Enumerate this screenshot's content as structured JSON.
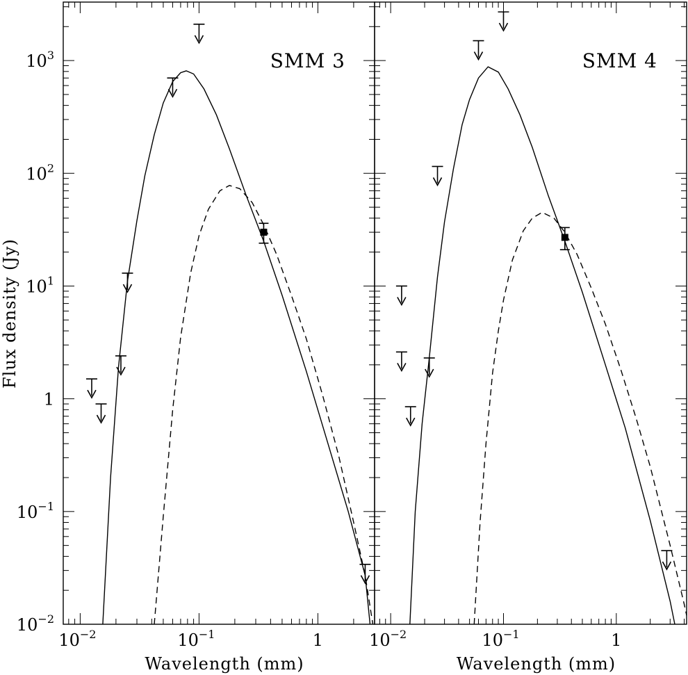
{
  "chart_data": {
    "type": "line",
    "y_axis": {
      "label": "Flux density (Jy)",
      "scale": "log",
      "range": [
        0.01,
        3300
      ],
      "ticks": [
        {
          "value": 0.01,
          "base": "10",
          "exp": "−2"
        },
        {
          "value": 0.1,
          "base": "10",
          "exp": "−1"
        },
        {
          "value": 1,
          "base": "1",
          "exp": ""
        },
        {
          "value": 10,
          "base": "10",
          "exp": "1"
        },
        {
          "value": 100,
          "base": "10",
          "exp": "2"
        },
        {
          "value": 1000,
          "base": "10",
          "exp": "3"
        }
      ]
    },
    "panels": [
      {
        "label": "SMM 3",
        "xlabel": "Wavelength (mm)",
        "x_scale": "log",
        "xlim": [
          0.0072,
          3.0
        ],
        "x_ticks": [
          {
            "value": 0.01,
            "base": "10",
            "exp": "−2"
          },
          {
            "value": 0.1,
            "base": "10",
            "exp": "−1"
          },
          {
            "value": 1,
            "base": "1",
            "exp": ""
          }
        ],
        "curves": [
          {
            "style": "solid",
            "x": [
              0.0155,
              0.018,
              0.021,
              0.025,
              0.03,
              0.035,
              0.042,
              0.05,
              0.06,
              0.07,
              0.078,
              0.09,
              0.11,
              0.14,
              0.18,
              0.25,
              0.35,
              0.5,
              0.8,
              1.2,
              1.8,
              2.5,
              2.75
            ],
            "y": [
              0.01,
              0.2,
              1.9,
              11,
              38,
              95,
              220,
              420,
              650,
              780,
              810,
              760,
              560,
              330,
              165,
              63,
              25,
              8.3,
              1.75,
              0.42,
              0.1,
              0.027,
              0.01
            ]
          },
          {
            "style": "dashed",
            "x": [
              0.042,
              0.05,
              0.06,
              0.07,
              0.085,
              0.1,
              0.12,
              0.15,
              0.18,
              0.22,
              0.28,
              0.35,
              0.45,
              0.6,
              0.8,
              1.1,
              1.5,
              2.0,
              2.5,
              2.9
            ],
            "y": [
              0.01,
              0.09,
              0.8,
              3.5,
              13,
              28,
              48,
              70,
              78,
              73,
              55,
              35,
              19,
              8.2,
              3.4,
              1.06,
              0.31,
              0.08,
              0.027,
              0.01
            ]
          }
        ],
        "detections": [
          {
            "x": 0.35,
            "y": 30,
            "y_low": 24,
            "y_high": 36
          }
        ],
        "upper_limits": [
          {
            "x": 0.0125,
            "y": 1.5
          },
          {
            "x": 0.015,
            "y": 0.9
          },
          {
            "x": 0.022,
            "y": 2.4
          },
          {
            "x": 0.025,
            "y": 13
          },
          {
            "x": 0.06,
            "y": 700
          },
          {
            "x": 0.1,
            "y": 2100
          },
          {
            "x": 2.5,
            "y": 0.034
          }
        ]
      },
      {
        "label": "SMM 4",
        "xlabel": "Wavelength (mm)",
        "x_scale": "log",
        "xlim": [
          0.0072,
          4.2
        ],
        "x_ticks": [
          {
            "value": 0.01,
            "base": "10",
            "exp": "−2"
          },
          {
            "value": 0.1,
            "base": "10",
            "exp": "−1"
          },
          {
            "value": 1,
            "base": "1",
            "exp": ""
          }
        ],
        "curves": [
          {
            "style": "solid",
            "x": [
              0.0148,
              0.0165,
              0.019,
              0.022,
              0.026,
              0.03,
              0.036,
              0.043,
              0.05,
              0.06,
              0.073,
              0.09,
              0.11,
              0.14,
              0.18,
              0.25,
              0.35,
              0.5,
              0.8,
              1.2,
              2.0,
              3.0,
              3.3
            ],
            "y": [
              0.01,
              0.1,
              0.6,
              2.3,
              12,
              37,
              110,
              270,
              450,
              700,
              880,
              790,
              560,
              330,
              170,
              63,
              25,
              8.8,
              2.0,
              0.55,
              0.083,
              0.016,
              0.01
            ]
          },
          {
            "style": "dashed",
            "x": [
              0.055,
              0.062,
              0.07,
              0.08,
              0.09,
              0.1,
              0.12,
              0.15,
              0.18,
              0.22,
              0.28,
              0.35,
              0.45,
              0.6,
              0.8,
              1.1,
              1.5,
              2.0,
              3.0,
              4.0,
              4.2
            ],
            "y": [
              0.01,
              0.08,
              0.4,
              1.7,
              4.0,
              7.5,
              17,
              31,
              40,
              45,
              40,
              30,
              19,
              9.6,
              4.6,
              1.8,
              0.67,
              0.25,
              0.05,
              0.015,
              0.012
            ]
          }
        ],
        "detections": [
          {
            "x": 0.35,
            "y": 27,
            "y_low": 21,
            "y_high": 33
          }
        ],
        "upper_limits": [
          {
            "x": 0.0125,
            "y": 10
          },
          {
            "x": 0.0125,
            "y": 2.6
          },
          {
            "x": 0.015,
            "y": 0.85
          },
          {
            "x": 0.022,
            "y": 2.3
          },
          {
            "x": 0.026,
            "y": 115
          },
          {
            "x": 0.06,
            "y": 1500
          },
          {
            "x": 0.1,
            "y": 2700
          },
          {
            "x": 2.8,
            "y": 0.045
          }
        ]
      }
    ]
  }
}
